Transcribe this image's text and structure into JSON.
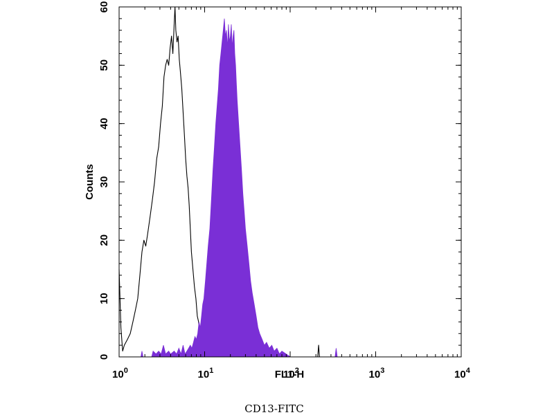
{
  "chart_data": {
    "type": "area",
    "title": "",
    "xlabel": "FL1-H",
    "ylabel": "Counts",
    "caption": "CD13-FITC",
    "x_scale": "log",
    "xlim": [
      1,
      10000
    ],
    "ylim": [
      0,
      60
    ],
    "x_ticks": [
      {
        "value": 1,
        "base": "10",
        "exp": "0"
      },
      {
        "value": 10,
        "base": "10",
        "exp": "1"
      },
      {
        "value": 100,
        "base": "10",
        "exp": "2"
      },
      {
        "value": 1000,
        "base": "10",
        "exp": "3"
      },
      {
        "value": 10000,
        "base": "10",
        "exp": "4"
      }
    ],
    "y_ticks": [
      0,
      10,
      20,
      30,
      40,
      50,
      60
    ],
    "grid": false,
    "series": [
      {
        "style": "outline",
        "color": "#000000",
        "points": [
          [
            1.0,
            15
          ],
          [
            1.05,
            5
          ],
          [
            1.1,
            1
          ],
          [
            1.15,
            2
          ],
          [
            1.25,
            3
          ],
          [
            1.35,
            4
          ],
          [
            1.45,
            6
          ],
          [
            1.55,
            8
          ],
          [
            1.65,
            10
          ],
          [
            1.75,
            14
          ],
          [
            1.85,
            18
          ],
          [
            1.95,
            20
          ],
          [
            2.05,
            19
          ],
          [
            2.15,
            21
          ],
          [
            2.3,
            24
          ],
          [
            2.45,
            27
          ],
          [
            2.6,
            30
          ],
          [
            2.75,
            34
          ],
          [
            2.9,
            36
          ],
          [
            3.05,
            40
          ],
          [
            3.2,
            43
          ],
          [
            3.35,
            48
          ],
          [
            3.5,
            50
          ],
          [
            3.65,
            51
          ],
          [
            3.8,
            50
          ],
          [
            3.95,
            53
          ],
          [
            4.1,
            55
          ],
          [
            4.25,
            52
          ],
          [
            4.4,
            57
          ],
          [
            4.5,
            60
          ],
          [
            4.6,
            56
          ],
          [
            4.75,
            54
          ],
          [
            4.9,
            55
          ],
          [
            5.05,
            51
          ],
          [
            5.2,
            49
          ],
          [
            5.4,
            46
          ],
          [
            5.6,
            42
          ],
          [
            5.8,
            38
          ],
          [
            6.0,
            34
          ],
          [
            6.2,
            31
          ],
          [
            6.4,
            29
          ],
          [
            6.6,
            26
          ],
          [
            6.8,
            22
          ],
          [
            7.0,
            18
          ],
          [
            7.3,
            15
          ],
          [
            7.6,
            12
          ],
          [
            7.9,
            10
          ],
          [
            8.2,
            7
          ],
          [
            8.5,
            6
          ],
          [
            8.8,
            4
          ],
          [
            9.2,
            3
          ],
          [
            9.6,
            2
          ],
          [
            10.0,
            3
          ],
          [
            10.5,
            1
          ],
          [
            11.0,
            2
          ],
          [
            11.6,
            1
          ],
          [
            12.2,
            2
          ],
          [
            13.0,
            1
          ],
          [
            14.0,
            1
          ],
          [
            15.0,
            0.5
          ],
          [
            16.5,
            1
          ],
          [
            18.0,
            0.5
          ],
          [
            20.0,
            0
          ],
          [
            40.0,
            0
          ],
          [
            45.0,
            1
          ],
          [
            50.0,
            0
          ],
          [
            210.0,
            0
          ],
          [
            215.0,
            2
          ],
          [
            220.0,
            0
          ],
          [
            10000.0,
            0
          ]
        ]
      },
      {
        "style": "filled",
        "color": "#7a2fd6",
        "points": [
          [
            1.0,
            0
          ],
          [
            1.8,
            0
          ],
          [
            1.85,
            1
          ],
          [
            1.9,
            0
          ],
          [
            2.4,
            0
          ],
          [
            2.5,
            1
          ],
          [
            2.7,
            0.5
          ],
          [
            2.9,
            1
          ],
          [
            3.1,
            0.5
          ],
          [
            3.3,
            2
          ],
          [
            3.5,
            0.5
          ],
          [
            3.8,
            1
          ],
          [
            4.0,
            0.5
          ],
          [
            4.4,
            1
          ],
          [
            4.7,
            0.5
          ],
          [
            5.0,
            1.5
          ],
          [
            5.3,
            0.5
          ],
          [
            5.6,
            2
          ],
          [
            5.9,
            0.5
          ],
          [
            6.2,
            1
          ],
          [
            6.5,
            1.5
          ],
          [
            6.8,
            2
          ],
          [
            7.1,
            1.5
          ],
          [
            7.4,
            2.5
          ],
          [
            7.7,
            3.5
          ],
          [
            8.0,
            3
          ],
          [
            8.3,
            4
          ],
          [
            8.6,
            6
          ],
          [
            8.9,
            5
          ],
          [
            9.2,
            7
          ],
          [
            9.5,
            9
          ],
          [
            9.8,
            10
          ],
          [
            10.2,
            13
          ],
          [
            10.6,
            16
          ],
          [
            11.0,
            19
          ],
          [
            11.5,
            22
          ],
          [
            12.0,
            27
          ],
          [
            12.5,
            32
          ],
          [
            13.0,
            36
          ],
          [
            13.5,
            40
          ],
          [
            14.0,
            43
          ],
          [
            14.5,
            46
          ],
          [
            15.0,
            50
          ],
          [
            15.5,
            52
          ],
          [
            16.0,
            54
          ],
          [
            16.5,
            56
          ],
          [
            17.0,
            58
          ],
          [
            17.5,
            55
          ],
          [
            18.0,
            56
          ],
          [
            18.5,
            53
          ],
          [
            19.0,
            57
          ],
          [
            19.5,
            54
          ],
          [
            20.0,
            55
          ],
          [
            20.5,
            57
          ],
          [
            21.0,
            53
          ],
          [
            21.5,
            55
          ],
          [
            22.0,
            56
          ],
          [
            22.5,
            52
          ],
          [
            23.0,
            50
          ],
          [
            23.5,
            47
          ],
          [
            24.0,
            44
          ],
          [
            25.0,
            40
          ],
          [
            26.0,
            36
          ],
          [
            27.0,
            32
          ],
          [
            28.0,
            28
          ],
          [
            29.0,
            25
          ],
          [
            30.0,
            22
          ],
          [
            31.5,
            19
          ],
          [
            33.0,
            16
          ],
          [
            34.5,
            13
          ],
          [
            36.0,
            11
          ],
          [
            38.0,
            9
          ],
          [
            40.0,
            7
          ],
          [
            42.0,
            5
          ],
          [
            44.0,
            4
          ],
          [
            47.0,
            3
          ],
          [
            50.0,
            2
          ],
          [
            53.0,
            2.5
          ],
          [
            57.0,
            1.5
          ],
          [
            61.0,
            2
          ],
          [
            65.0,
            1
          ],
          [
            70.0,
            1.5
          ],
          [
            75.0,
            0.5
          ],
          [
            80.0,
            1
          ],
          [
            90.0,
            0.5
          ],
          [
            100.0,
            0
          ],
          [
            335.0,
            0
          ],
          [
            345.0,
            1.5
          ],
          [
            355.0,
            0
          ],
          [
            10000.0,
            0
          ]
        ]
      }
    ]
  }
}
